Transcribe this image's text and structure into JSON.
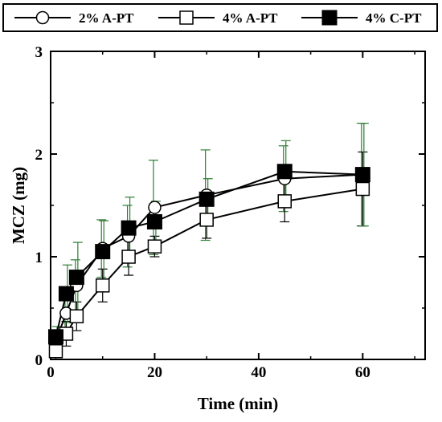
{
  "chart_data": {
    "type": "line",
    "xlabel": "Time (min)",
    "ylabel": "MCZ (mg)",
    "xlim": [
      0,
      72
    ],
    "ylim": [
      0,
      3
    ],
    "xticks": [
      0,
      20,
      40,
      60
    ],
    "yticks": [
      0,
      1,
      2,
      3
    ],
    "legend_position": "top",
    "grid": false,
    "series": [
      {
        "name": "2% A-PT",
        "marker": "open-circle",
        "color": "#000000",
        "x": [
          1,
          3,
          5,
          10,
          15,
          20,
          30,
          45,
          60
        ],
        "y": [
          0.18,
          0.45,
          0.72,
          1.08,
          1.2,
          1.48,
          1.6,
          1.76,
          1.8
        ],
        "err": [
          0.1,
          0.18,
          0.25,
          0.28,
          0.3,
          0.46,
          0.44,
          0.32,
          0.5
        ]
      },
      {
        "name": "4% A-PT",
        "marker": "open-square",
        "color": "#000000",
        "x": [
          1,
          3,
          5,
          10,
          15,
          20,
          30,
          45,
          60
        ],
        "y": [
          0.08,
          0.25,
          0.42,
          0.72,
          1.0,
          1.1,
          1.36,
          1.54,
          1.66
        ],
        "err": [
          0.08,
          0.12,
          0.14,
          0.16,
          0.18,
          0.1,
          0.18,
          0.2,
          0.36
        ]
      },
      {
        "name": "4% C-PT",
        "marker": "filled-square",
        "color": "#000000",
        "x": [
          1,
          3,
          5,
          10,
          15,
          20,
          30,
          45,
          60
        ],
        "y": [
          0.22,
          0.64,
          0.8,
          1.05,
          1.28,
          1.34,
          1.56,
          1.83,
          1.8
        ],
        "err": [
          0.1,
          0.28,
          0.34,
          0.3,
          0.3,
          0.2,
          0.2,
          0.3,
          0.5
        ]
      }
    ],
    "error_bar_color": "#2e7d32"
  }
}
